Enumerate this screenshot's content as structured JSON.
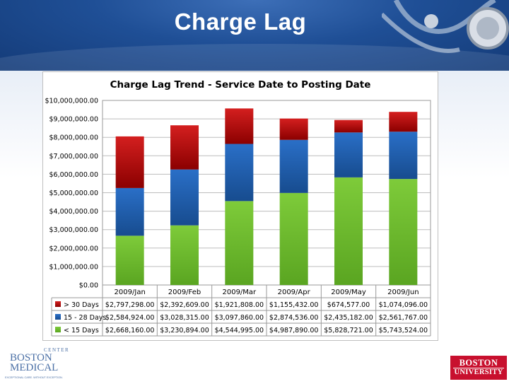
{
  "slide": {
    "title": "Charge Lag"
  },
  "logos": {
    "bmc_line1": "BOSTON",
    "bmc_line2": "MEDICAL",
    "bmc_arc": "CENTER",
    "bmc_tagline": "EXCEPTIONAL CARE. WITHOUT EXCEPTION.",
    "bu_line1": "BOSTON",
    "bu_line2": "UNIVERSITY"
  },
  "colors": {
    "header_blue": "#1f4f96",
    "series_red": "#c00000",
    "series_blue": "#1f5fb0",
    "series_green": "#6cbf2a"
  },
  "chart_data": {
    "type": "bar",
    "stacked": true,
    "title": "Charge Lag Trend - Service Date to Posting Date",
    "categories": [
      "2009/Jan",
      "2009/Feb",
      "2009/Mar",
      "2009/Apr",
      "2009/May",
      "2009/Jun"
    ],
    "series": [
      {
        "name": "< 15 Days",
        "values": [
          2668160,
          3230894,
          4544995,
          4987890,
          5828721,
          5743524
        ],
        "labels": [
          "$2,668,160.00",
          "$3,230,894.00",
          "$4,544,995.00",
          "$4,987,890.00",
          "$5,828,721.00",
          "$5,743,524.00"
        ],
        "color": "#6cbf2a"
      },
      {
        "name": "15 - 28 Days",
        "values": [
          2584924,
          3028315,
          3097860,
          2874536,
          2435182,
          2561767
        ],
        "labels": [
          "$2,584,924.00",
          "$3,028,315.00",
          "$3,097,860.00",
          "$2,874,536.00",
          "$2,435,182.00",
          "$2,561,767.00"
        ],
        "color": "#1f5fb0"
      },
      {
        "name": "> 30 Days",
        "values": [
          2797298,
          2392609,
          1921808,
          1155432,
          674577,
          1074096
        ],
        "labels": [
          "$2,797,298.00",
          "$2,392,609.00",
          "$1,921,808.00",
          "$1,155,432.00",
          "$674,577.00",
          "$1,074,096.00"
        ],
        "color": "#c00000"
      }
    ],
    "y_ticks": [
      "$0.00",
      "$1,000,000.00",
      "$2,000,000.00",
      "$3,000,000.00",
      "$4,000,000.00",
      "$5,000,000.00",
      "$6,000,000.00",
      "$7,000,000.00",
      "$8,000,000.00",
      "$9,000,000.00",
      "$10,000,000.00"
    ],
    "ylim": [
      0,
      10000000
    ],
    "grid": true,
    "table_row_order": [
      "> 30 Days",
      "15 - 28 Days",
      "< 15 Days"
    ]
  }
}
